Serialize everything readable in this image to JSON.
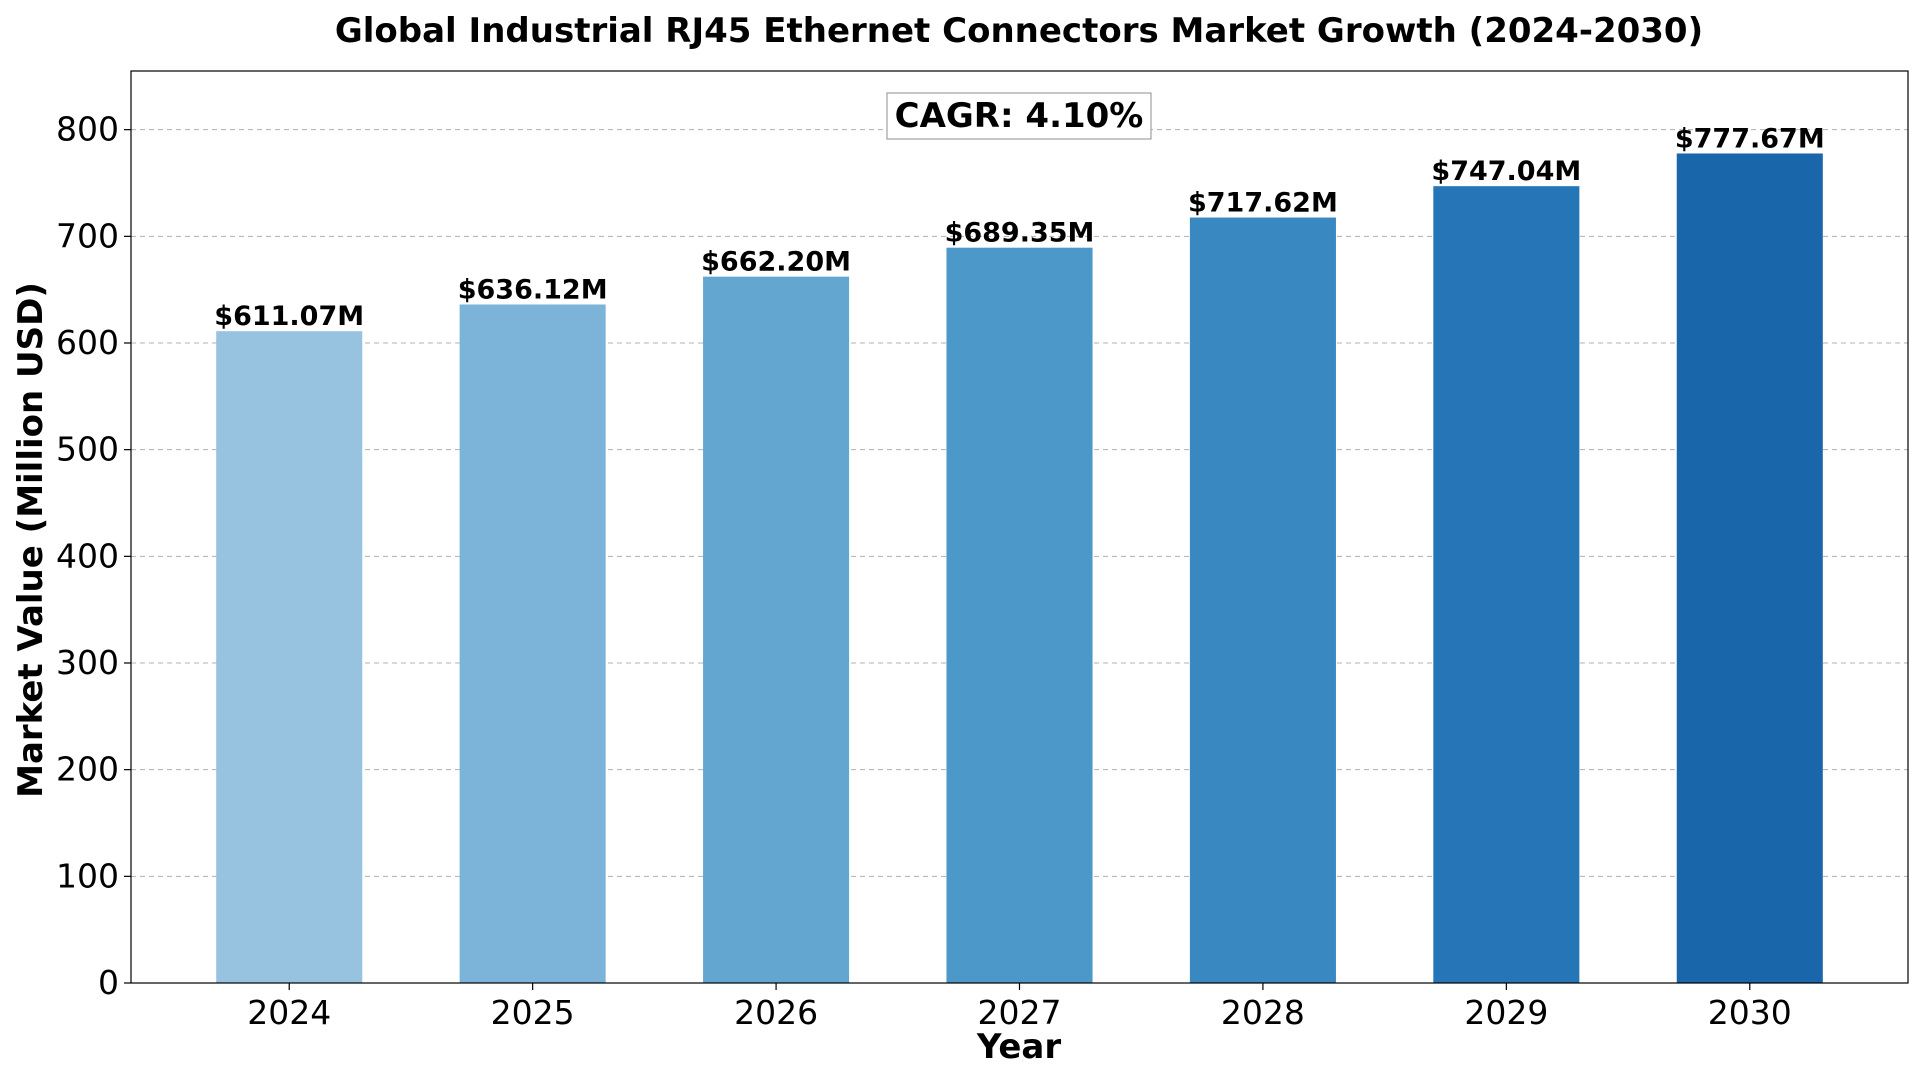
{
  "chart_data": {
    "type": "bar",
    "title": "Global Industrial RJ45 Ethernet Connectors Market Growth (2024-2030)",
    "xlabel": "Year",
    "ylabel": "Market Value (Million USD)",
    "categories": [
      "2024",
      "2025",
      "2026",
      "2027",
      "2028",
      "2029",
      "2030"
    ],
    "values": [
      611.07,
      636.12,
      662.2,
      689.35,
      717.62,
      747.04,
      777.67
    ],
    "data_labels": [
      "$611.07M",
      "$636.12M",
      "$662.20M",
      "$689.35M",
      "$717.62M",
      "$747.04M",
      "$777.67M"
    ],
    "bar_colors": [
      "#97c3e0",
      "#7bb4d8",
      "#63a7d1",
      "#4b98c9",
      "#3988c1",
      "#2676b7",
      "#1a66aa"
    ],
    "ylim": [
      0,
      855
    ],
    "yticks": [
      0,
      100,
      200,
      300,
      400,
      500,
      600,
      700,
      800
    ],
    "grid": "y-dashed",
    "annotation": "CAGR: 4.10%"
  }
}
